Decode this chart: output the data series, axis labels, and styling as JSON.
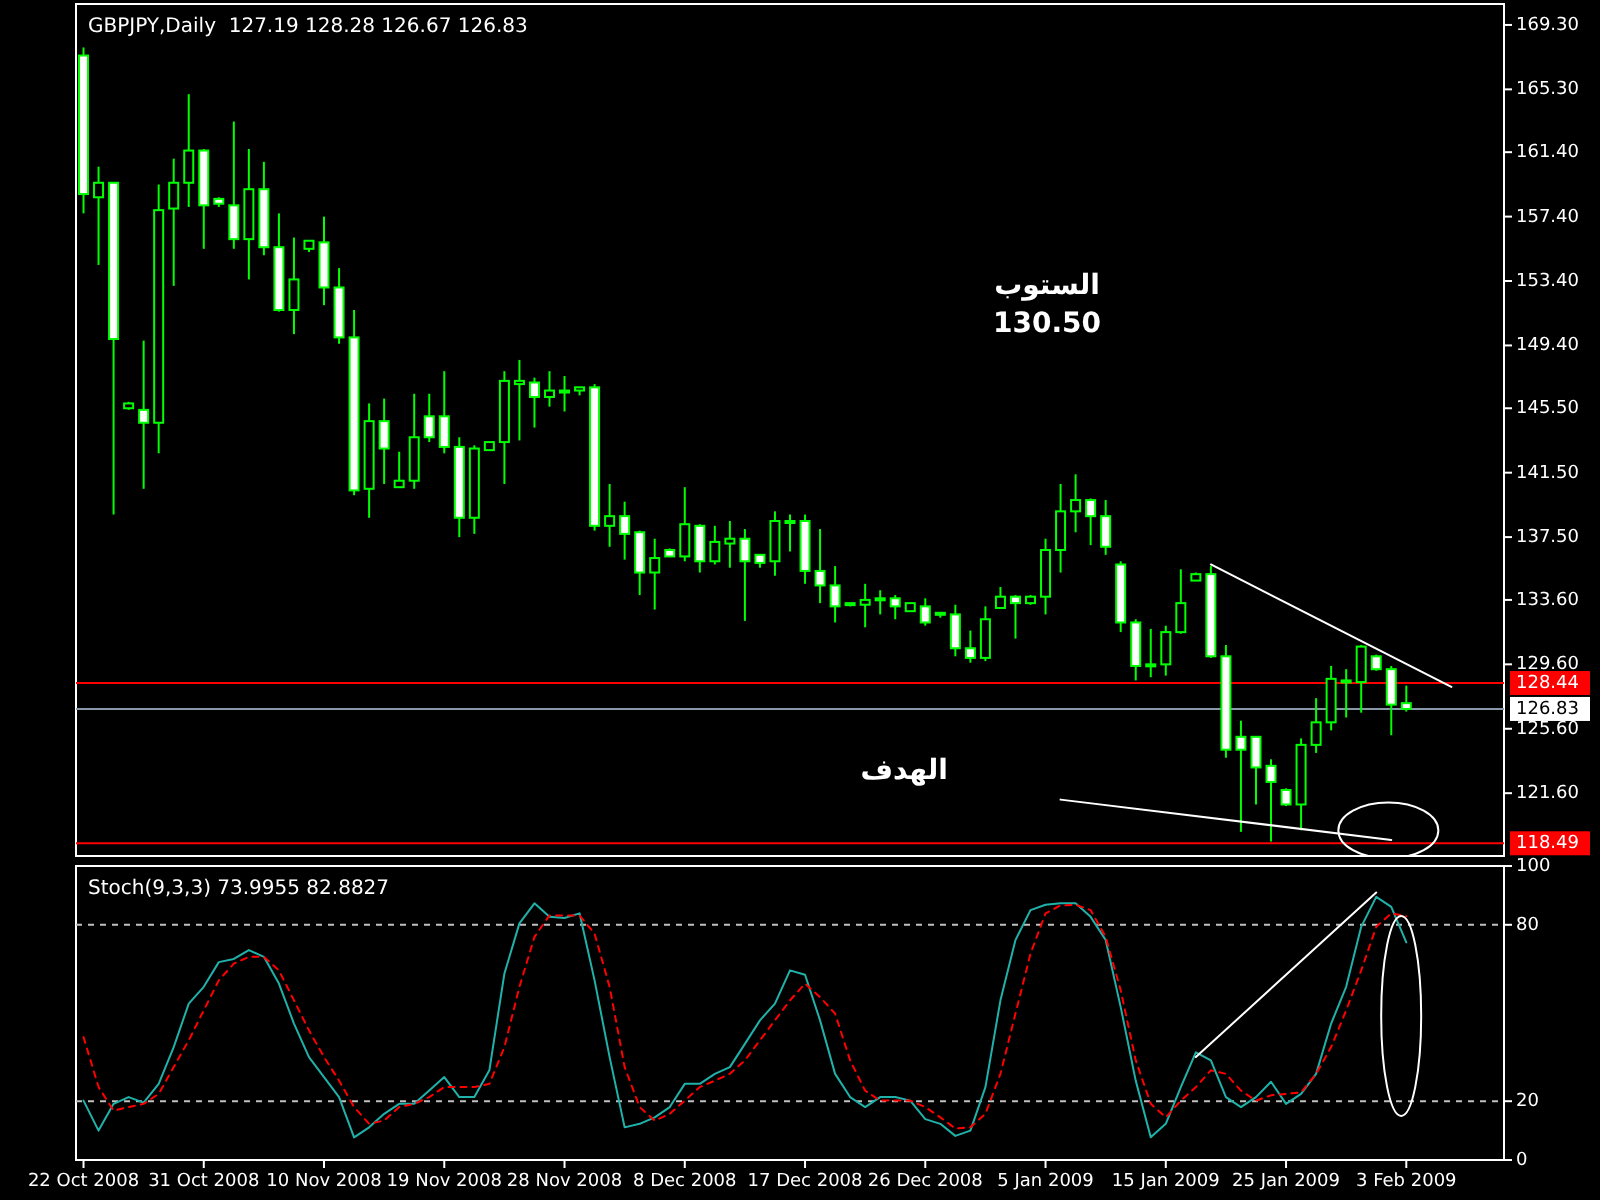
{
  "chart_data": [
    {
      "type": "candlestick",
      "title": "GBPJPY,Daily  127.19 128.28 126.67 126.83",
      "color": "#00ff00",
      "tick_labels": "y",
      "categories": [
        null,
        null,
        null,
        null,
        null,
        null,
        null,
        null,
        null,
        null,
        null,
        null,
        null,
        null,
        null,
        null,
        null,
        null,
        null,
        null,
        null,
        null,
        null,
        null,
        null,
        null,
        null,
        null,
        null,
        null,
        null,
        null,
        null,
        null,
        null,
        null,
        null,
        null,
        null,
        null,
        null,
        null,
        null,
        null,
        null,
        null,
        null,
        null,
        null,
        null,
        null,
        null,
        null,
        null,
        null,
        null,
        null,
        null,
        null,
        null,
        null,
        null,
        null,
        null,
        null,
        null,
        null,
        null,
        null,
        null,
        null,
        null,
        null,
        null,
        null,
        null,
        null,
        null,
        null,
        null,
        null,
        null,
        null,
        null,
        null,
        null,
        null,
        null,
        null,
        null,
        null,
        null,
        null,
        null,
        null
      ],
      "ohlc": [
        [
          167.4,
          167.9,
          157.6,
          158.8
        ],
        [
          158.6,
          160.5,
          154.4,
          159.5
        ],
        [
          159.5,
          159.5,
          138.9,
          149.8
        ],
        [
          145.5,
          145.9,
          145.4,
          145.8
        ],
        [
          145.4,
          149.7,
          140.5,
          144.6
        ],
        [
          144.6,
          159.4,
          142.7,
          157.8
        ],
        [
          157.9,
          161.0,
          153.1,
          159.5
        ],
        [
          159.5,
          165.0,
          158.0,
          161.5
        ],
        [
          161.5,
          161.6,
          155.4,
          158.1
        ],
        [
          158.5,
          158.6,
          158.0,
          158.2
        ],
        [
          158.1,
          163.3,
          155.4,
          156.0
        ],
        [
          156.0,
          161.6,
          153.5,
          159.1
        ],
        [
          159.1,
          160.8,
          155.0,
          155.5
        ],
        [
          155.5,
          157.6,
          151.5,
          151.6
        ],
        [
          151.6,
          156.1,
          150.1,
          153.5
        ],
        [
          155.4,
          155.9,
          155.2,
          155.9
        ],
        [
          155.8,
          157.4,
          151.9,
          153.0
        ],
        [
          153.0,
          154.2,
          149.5,
          149.9
        ],
        [
          149.9,
          151.6,
          140.1,
          140.4
        ],
        [
          140.5,
          145.8,
          138.7,
          144.7
        ],
        [
          144.7,
          146.1,
          140.8,
          143.0
        ],
        [
          140.6,
          142.8,
          140.6,
          141.0
        ],
        [
          141.0,
          146.4,
          140.5,
          143.7
        ],
        [
          145.0,
          146.4,
          143.4,
          143.7
        ],
        [
          145.0,
          147.8,
          142.7,
          143.1
        ],
        [
          143.1,
          143.7,
          137.5,
          138.7
        ],
        [
          138.7,
          143.2,
          137.7,
          143.0
        ],
        [
          142.9,
          143.4,
          142.9,
          143.4
        ],
        [
          143.4,
          147.8,
          140.8,
          147.2
        ],
        [
          147.0,
          148.5,
          143.5,
          147.2
        ],
        [
          147.1,
          147.4,
          144.3,
          146.2
        ],
        [
          146.2,
          147.8,
          145.6,
          146.6
        ],
        [
          146.6,
          147.5,
          145.3,
          146.6
        ],
        [
          146.6,
          146.8,
          146.3,
          146.8
        ],
        [
          146.8,
          147.0,
          137.9,
          138.2
        ],
        [
          138.2,
          140.8,
          136.9,
          138.8
        ],
        [
          138.8,
          139.7,
          136.1,
          137.7
        ],
        [
          137.8,
          137.9,
          133.9,
          135.3
        ],
        [
          135.3,
          137.4,
          133.0,
          136.2
        ],
        [
          136.7,
          136.8,
          136.3,
          136.3
        ],
        [
          136.3,
          140.6,
          136.0,
          138.3
        ],
        [
          138.2,
          138.3,
          135.3,
          136.0
        ],
        [
          136.0,
          138.2,
          135.8,
          137.2
        ],
        [
          137.1,
          138.5,
          135.6,
          137.4
        ],
        [
          137.4,
          138.0,
          132.3,
          136.0
        ],
        [
          136.4,
          136.4,
          135.6,
          135.9
        ],
        [
          136.0,
          139.1,
          135.1,
          138.5
        ],
        [
          138.4,
          138.9,
          136.6,
          138.5
        ],
        [
          138.5,
          138.9,
          134.6,
          135.4
        ],
        [
          135.4,
          138.0,
          133.4,
          134.5
        ],
        [
          134.5,
          135.7,
          132.2,
          133.2
        ],
        [
          133.4,
          133.4,
          133.2,
          133.4
        ],
        [
          133.3,
          134.6,
          131.9,
          133.6
        ],
        [
          133.6,
          134.2,
          132.7,
          133.7
        ],
        [
          133.7,
          133.9,
          132.4,
          133.2
        ],
        [
          132.9,
          133.4,
          132.9,
          133.4
        ],
        [
          133.2,
          133.7,
          132.0,
          132.2
        ],
        [
          132.7,
          132.8,
          132.5,
          132.8
        ],
        [
          132.7,
          133.3,
          130.1,
          130.6
        ],
        [
          130.6,
          131.7,
          129.7,
          130.0
        ],
        [
          130.0,
          133.2,
          129.8,
          132.4
        ],
        [
          133.1,
          134.4,
          133.1,
          133.8
        ],
        [
          133.8,
          133.9,
          131.2,
          133.4
        ],
        [
          133.4,
          133.9,
          133.3,
          133.8
        ],
        [
          133.8,
          137.4,
          132.7,
          136.7
        ],
        [
          136.7,
          140.8,
          135.3,
          139.1
        ],
        [
          139.1,
          141.4,
          137.8,
          139.8
        ],
        [
          139.8,
          139.9,
          137.0,
          138.8
        ],
        [
          138.8,
          139.8,
          136.4,
          136.9
        ],
        [
          135.8,
          136.0,
          131.6,
          132.2
        ],
        [
          132.2,
          132.4,
          128.6,
          129.5
        ],
        [
          129.5,
          131.8,
          128.8,
          129.6
        ],
        [
          129.6,
          132.0,
          128.9,
          131.6
        ],
        [
          131.6,
          135.5,
          131.5,
          133.4
        ],
        [
          134.8,
          135.3,
          134.8,
          135.2
        ],
        [
          135.2,
          135.7,
          130.0,
          130.1
        ],
        [
          130.1,
          130.8,
          123.8,
          124.3
        ],
        [
          125.1,
          126.1,
          119.2,
          124.3
        ],
        [
          125.1,
          125.1,
          120.9,
          123.2
        ],
        [
          123.3,
          123.7,
          118.6,
          122.3
        ],
        [
          121.8,
          121.9,
          120.8,
          120.9
        ],
        [
          120.9,
          125.0,
          119.3,
          124.6
        ],
        [
          124.6,
          127.5,
          124.1,
          126.0
        ],
        [
          126.0,
          129.5,
          125.5,
          128.7
        ],
        [
          128.5,
          129.3,
          126.3,
          128.6
        ],
        [
          128.5,
          130.8,
          126.6,
          130.7
        ],
        [
          130.1,
          130.2,
          129.2,
          129.3
        ],
        [
          129.3,
          129.5,
          125.2,
          127.1
        ],
        [
          127.19,
          128.28,
          126.67,
          126.83
        ],
        null,
        null,
        null,
        null,
        null,
        null
      ],
      "colors": [
        "#ffffff",
        "#000000",
        "#ffffff",
        "#000000",
        "#ffffff",
        "#000000",
        "#000000",
        "#000000",
        "#ffffff",
        "#ffffff",
        "#ffffff",
        "#000000",
        "#ffffff",
        "#ffffff",
        "#000000",
        "#000000",
        "#ffffff",
        "#ffffff",
        "#ffffff",
        "#000000",
        "#ffffff",
        "#000000",
        "#000000",
        "#ffffff",
        "#ffffff",
        "#ffffff",
        "#000000",
        "#000000",
        "#000000",
        "#000000",
        "#ffffff",
        "#000000",
        "#000000",
        "#000000",
        "#ffffff",
        "#000000",
        "#ffffff",
        "#ffffff",
        "#000000",
        "#ffffff",
        "#000000",
        "#ffffff",
        "#000000",
        "#000000",
        "#ffffff",
        "#ffffff",
        "#000000",
        "#000000",
        "#ffffff",
        "#ffffff",
        "#ffffff",
        "#000000",
        "#000000",
        "#000000",
        "#ffffff",
        "#000000",
        "#ffffff",
        "#000000",
        "#ffffff",
        "#ffffff",
        "#000000",
        "#000000",
        "#ffffff",
        "#000000",
        "#000000",
        "#000000",
        "#000000",
        "#ffffff",
        "#ffffff",
        "#ffffff",
        "#ffffff",
        "#000000",
        "#000000",
        "#000000",
        "#000000",
        "#ffffff",
        "#ffffff",
        "#ffffff",
        "#ffffff",
        "#ffffff",
        "#ffffff",
        "#000000",
        "#000000",
        "#000000",
        "#000000",
        "#000000",
        "#ffffff",
        "#ffffff",
        "#ffffff",
        null,
        null,
        null,
        null,
        null,
        null
      ],
      "series": [
        {
          "type": "line",
          "color": "#ffffff",
          "values": [
            null,
            null,
            null,
            null,
            null,
            null,
            null,
            null,
            null,
            null,
            null,
            null,
            null,
            null,
            null,
            null,
            null,
            null,
            null,
            null,
            null,
            null,
            null,
            null,
            null,
            null,
            null,
            null,
            null,
            null,
            null,
            null,
            null,
            null,
            null,
            null,
            null,
            null,
            null,
            null,
            null,
            null,
            null,
            null,
            null,
            null,
            null,
            null,
            null,
            null,
            null,
            null,
            null,
            null,
            null,
            null,
            null,
            null,
            null,
            null,
            null,
            null,
            null,
            null,
            null,
            null,
            null,
            null,
            null,
            null,
            null,
            null,
            null,
            null,
            null,
            135.8,
            null,
            null,
            null,
            null,
            null,
            null,
            null,
            null,
            null,
            null,
            null,
            null,
            null,
            null,
            null,
            128.2,
            null,
            null,
            null
          ]
        },
        {
          "type": "line",
          "color": "#ffffff",
          "values": [
            null,
            null,
            null,
            null,
            null,
            null,
            null,
            null,
            null,
            null,
            null,
            null,
            null,
            null,
            null,
            null,
            null,
            null,
            null,
            null,
            null,
            null,
            null,
            null,
            null,
            null,
            null,
            null,
            null,
            null,
            null,
            null,
            null,
            null,
            null,
            null,
            null,
            null,
            null,
            null,
            null,
            null,
            null,
            null,
            null,
            null,
            null,
            null,
            null,
            null,
            null,
            null,
            null,
            null,
            null,
            null,
            null,
            null,
            null,
            null,
            null,
            null,
            null,
            null,
            null,
            121.2,
            null,
            null,
            null,
            null,
            null,
            null,
            null,
            null,
            null,
            null,
            null,
            null,
            null,
            null,
            null,
            null,
            null,
            null,
            null,
            null,
            null,
            118.7,
            null,
            null,
            null,
            null,
            null,
            null,
            null
          ]
        }
      ],
      "ylim": [
        117.7,
        170.6
      ],
      "yticks": [
        {
          "value": 169.3,
          "label": "169.30"
        },
        {
          "value": 165.3,
          "label": "165.30"
        },
        {
          "value": 161.4,
          "label": "161.40"
        },
        {
          "value": 157.4,
          "label": "157.40"
        },
        {
          "value": 153.4,
          "label": "153.40"
        },
        {
          "value": 149.4,
          "label": "149.40"
        },
        {
          "value": 145.5,
          "label": "145.50"
        },
        {
          "value": 141.5,
          "label": "141.50"
        },
        {
          "value": 137.5,
          "label": "137.50"
        },
        {
          "value": 133.6,
          "label": "133.60"
        },
        {
          "value": 129.6,
          "label": "129.60"
        },
        {
          "value": 125.6,
          "label": "125.60"
        },
        {
          "value": 121.6,
          "label": "121.60"
        }
      ],
      "ref_lines": [
        {
          "axis": "y",
          "value": 128.44,
          "label": "128.44",
          "color": "#ff0000"
        },
        {
          "axis": "y",
          "value": 126.83,
          "label": "126.83",
          "color": "#8899aa"
        },
        {
          "axis": "y",
          "value": 118.49,
          "label": "118.49",
          "color": "#ff0000"
        }
      ],
      "annotations": [
        "الستوب",
        "130.50",
        "الهدف"
      ]
    },
    {
      "type": "line",
      "title": "Stoch(9,3,3) 73.9955 82.8827",
      "categories": [
        "22 Oct 2008",
        null,
        null,
        null,
        null,
        null,
        null,
        null,
        "31 Oct 2008",
        null,
        null,
        null,
        null,
        null,
        null,
        null,
        "10 Nov 2008",
        null,
        null,
        null,
        null,
        null,
        null,
        null,
        "19 Nov 2008",
        null,
        null,
        null,
        null,
        null,
        null,
        null,
        "28 Nov 2008",
        null,
        null,
        null,
        null,
        null,
        null,
        null,
        "8 Dec 2008",
        null,
        null,
        null,
        null,
        null,
        null,
        null,
        "17 Dec 2008",
        null,
        null,
        null,
        null,
        null,
        null,
        null,
        "26 Dec 2008",
        null,
        null,
        null,
        null,
        null,
        null,
        null,
        "5 Jan 2009",
        null,
        null,
        null,
        null,
        null,
        null,
        null,
        "15 Jan 2009",
        null,
        null,
        null,
        null,
        null,
        null,
        null,
        "25 Jan 2009",
        null,
        null,
        null,
        null,
        null,
        null,
        null,
        "3 Feb 2009",
        null,
        null,
        null,
        null,
        null,
        null
      ],
      "series": [
        {
          "color": "#20b2aa",
          "values": [
            20.2,
            10,
            19.1,
            21.4,
            19.5,
            25.9,
            38.4,
            53.2,
            58.9,
            67.3,
            68.4,
            71.4,
            69.1,
            60,
            46.4,
            35,
            28.2,
            21.4,
            7.7,
            11.1,
            15.7,
            19.1,
            19.1,
            23.6,
            28.2,
            21.4,
            21.4,
            30.5,
            63.4,
            80.5,
            87.3,
            82.7,
            82.3,
            83.9,
            61.1,
            35,
            11.1,
            12.3,
            14.5,
            18,
            25.9,
            25.9,
            29.3,
            31.6,
            39.5,
            47.5,
            53.2,
            64.5,
            63,
            47.5,
            29.3,
            21.4,
            18,
            21.4,
            21.4,
            20.2,
            13.9,
            12.3,
            8.2,
            10,
            24.8,
            54.3,
            74.8,
            85,
            86.8,
            87.3,
            87.3,
            82.7,
            74.8,
            52,
            27,
            7.7,
            12.3,
            24.8,
            36.6,
            33.9,
            21.4,
            18,
            21.4,
            26.6,
            19.1,
            22.5,
            29.3,
            46.4,
            58.9,
            79.3,
            89.5,
            86.1,
            74.0,
            null,
            null,
            null,
            null,
            null,
            null
          ]
        },
        {
          "color": "#ff0000",
          "line_style": "dashed",
          "values": [
            41.8,
            24.8,
            16.8,
            18,
            19.1,
            22.5,
            31.6,
            40.7,
            50.9,
            61.1,
            66.8,
            69.1,
            69.1,
            64.5,
            54.3,
            44.1,
            35,
            27,
            18,
            12.3,
            13.4,
            18,
            19.1,
            21.4,
            24.8,
            24.8,
            24.8,
            25.9,
            38.4,
            58.9,
            75.9,
            83.2,
            83.2,
            83.2,
            77,
            58.9,
            31.6,
            18,
            13.4,
            15.7,
            20.2,
            24.8,
            27,
            29.3,
            33.9,
            40.7,
            47.5,
            54.3,
            60,
            55.4,
            49.8,
            33.9,
            23.6,
            20.2,
            20.2,
            20.2,
            18,
            14.5,
            10.7,
            11.1,
            15.7,
            29.3,
            49.8,
            70.2,
            83.9,
            86.6,
            86.8,
            85,
            75.9,
            57.7,
            33.9,
            19.1,
            14.5,
            20.2,
            24.8,
            30.5,
            29.3,
            23.6,
            20.2,
            22.0,
            22.5,
            23,
            29.3,
            38.4,
            50.9,
            64.5,
            79.3,
            83.9,
            82.9,
            null,
            null,
            null,
            null,
            null,
            null
          ]
        },
        {
          "color": "#ffffff",
          "values": [
            null,
            null,
            null,
            null,
            null,
            null,
            null,
            null,
            null,
            null,
            null,
            null,
            null,
            null,
            null,
            null,
            null,
            null,
            null,
            null,
            null,
            null,
            null,
            null,
            null,
            null,
            null,
            null,
            null,
            null,
            null,
            null,
            null,
            null,
            null,
            null,
            null,
            null,
            null,
            null,
            null,
            null,
            null,
            null,
            null,
            null,
            null,
            null,
            null,
            null,
            null,
            null,
            null,
            null,
            null,
            null,
            null,
            null,
            null,
            null,
            null,
            null,
            null,
            null,
            null,
            null,
            null,
            null,
            null,
            null,
            null,
            null,
            null,
            null,
            35,
            null,
            null,
            null,
            null,
            null,
            null,
            null,
            null,
            null,
            null,
            null,
            91,
            null,
            null,
            null,
            null,
            null,
            null,
            null,
            null
          ]
        }
      ],
      "ylim": [
        0,
        100
      ],
      "yticks": [
        0,
        20,
        80,
        100
      ],
      "ref_lines": [
        {
          "axis": "y",
          "value": 80,
          "color": "#c0c0c0",
          "line_style": "dashed"
        },
        {
          "axis": "y",
          "value": 20,
          "color": "#c0c0c0",
          "line_style": "dashed"
        }
      ]
    }
  ]
}
